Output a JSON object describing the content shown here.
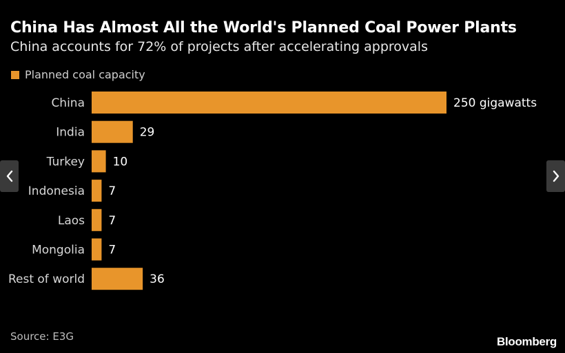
{
  "header": {
    "title": "China Has Almost All the World's Planned Coal Power Plants",
    "subtitle": "China accounts for 72% of projects after accelerating approvals"
  },
  "legend": {
    "label": "Planned coal capacity"
  },
  "footer": {
    "source": "Source: E3G",
    "brand": "Bloomberg"
  },
  "colors": {
    "bar": "#e8952b",
    "background": "#000000",
    "nav": "#3a3a3a"
  },
  "nav": {
    "prev_icon": "chevron-left-icon",
    "next_icon": "chevron-right-icon"
  },
  "chart_data": {
    "type": "bar",
    "orientation": "horizontal",
    "categories": [
      "China",
      "India",
      "Turkey",
      "Indonesia",
      "Laos",
      "Mongolia",
      "Rest of world"
    ],
    "values": [
      250,
      29,
      10,
      7,
      7,
      7,
      36
    ],
    "data_labels": [
      "250 gigawatts",
      "29",
      "10",
      "7",
      "7",
      "7",
      "36"
    ],
    "series": [
      {
        "name": "Planned coal capacity",
        "values": [
          250,
          29,
          10,
          7,
          7,
          7,
          36
        ]
      }
    ],
    "xlim": [
      0,
      250
    ],
    "grid": false,
    "legend_position": "top-left"
  }
}
